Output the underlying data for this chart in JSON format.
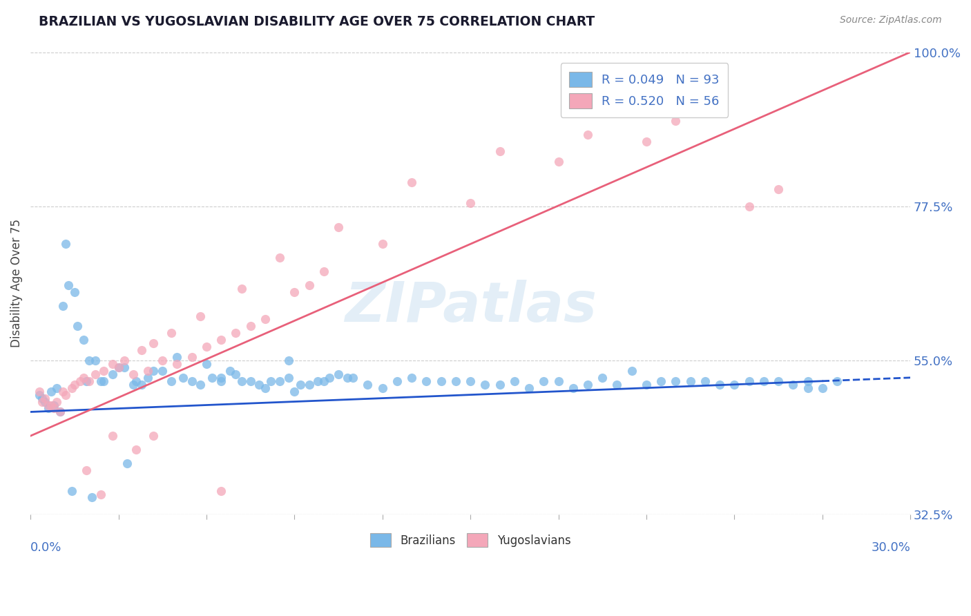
{
  "title": "BRAZILIAN VS YUGOSLAVIAN DISABILITY AGE OVER 75 CORRELATION CHART",
  "source": "Source: ZipAtlas.com",
  "ylabel_label": "Disability Age Over 75",
  "legend_R1": "R = 0.049",
  "legend_N1": "N = 93",
  "legend_R2": "R = 0.520",
  "legend_N2": "N = 56",
  "blue_color": "#7ab8e8",
  "pink_color": "#f4a7b9",
  "blue_line_color": "#2255cc",
  "pink_line_color": "#e8607a",
  "text_color_blue": "#4472c4",
  "xmin": 0.0,
  "xmax": 30.0,
  "ymin": 32.5,
  "ymax": 100.0,
  "ytick_vals": [
    32.5,
    55.0,
    77.5,
    100.0
  ],
  "blue_trend_y0": 47.5,
  "blue_trend_y1": 52.5,
  "pink_trend_y0": 44.0,
  "pink_trend_y1": 100.0,
  "blue_scatter_x": [
    0.3,
    0.4,
    0.5,
    0.6,
    0.7,
    0.8,
    0.9,
    1.0,
    1.1,
    1.2,
    1.3,
    1.5,
    1.6,
    1.8,
    2.0,
    2.2,
    2.5,
    2.8,
    3.0,
    3.2,
    3.5,
    3.8,
    4.0,
    4.2,
    4.5,
    4.8,
    5.0,
    5.2,
    5.5,
    5.8,
    6.0,
    6.2,
    6.5,
    6.8,
    7.0,
    7.2,
    7.5,
    7.8,
    8.0,
    8.2,
    8.5,
    8.8,
    9.0,
    9.2,
    9.5,
    9.8,
    10.0,
    10.2,
    10.5,
    10.8,
    11.0,
    11.5,
    12.0,
    12.5,
    13.0,
    13.5,
    14.0,
    14.5,
    15.0,
    15.5,
    16.0,
    16.5,
    17.0,
    17.5,
    18.0,
    18.5,
    19.0,
    19.5,
    20.0,
    20.5,
    21.0,
    21.5,
    22.0,
    22.5,
    23.0,
    23.5,
    24.0,
    24.5,
    25.0,
    25.5,
    26.0,
    26.5,
    27.0,
    27.5,
    2.4,
    3.6,
    1.9,
    6.5,
    8.8,
    26.5,
    1.4,
    2.1,
    3.3
  ],
  "blue_scatter_y": [
    50.0,
    49.5,
    49.0,
    48.0,
    50.5,
    48.5,
    51.0,
    47.5,
    63.0,
    72.0,
    66.0,
    65.0,
    60.0,
    58.0,
    55.0,
    55.0,
    52.0,
    53.0,
    54.0,
    54.0,
    51.5,
    51.5,
    52.5,
    53.5,
    53.5,
    52.0,
    55.5,
    52.5,
    52.0,
    51.5,
    54.5,
    52.5,
    52.5,
    53.5,
    53.0,
    52.0,
    52.0,
    51.5,
    51.0,
    52.0,
    52.0,
    52.5,
    50.5,
    51.5,
    51.5,
    52.0,
    52.0,
    52.5,
    53.0,
    52.5,
    52.5,
    51.5,
    51.0,
    52.0,
    52.5,
    52.0,
    52.0,
    52.0,
    52.0,
    51.5,
    51.5,
    52.0,
    51.0,
    52.0,
    52.0,
    51.0,
    51.5,
    52.5,
    51.5,
    53.5,
    51.5,
    52.0,
    52.0,
    52.0,
    52.0,
    51.5,
    51.5,
    52.0,
    52.0,
    52.0,
    51.5,
    51.0,
    51.0,
    52.0,
    52.0,
    52.0,
    52.0,
    52.0,
    55.0,
    52.0,
    36.0,
    35.0,
    40.0
  ],
  "pink_scatter_x": [
    0.3,
    0.5,
    0.6,
    0.8,
    0.9,
    1.0,
    1.2,
    1.4,
    1.5,
    1.7,
    1.8,
    1.9,
    2.0,
    2.2,
    2.4,
    2.5,
    2.8,
    3.0,
    3.2,
    3.5,
    3.6,
    3.8,
    4.0,
    4.2,
    4.5,
    4.8,
    5.0,
    5.5,
    5.8,
    6.0,
    6.5,
    7.0,
    7.2,
    7.5,
    8.0,
    8.5,
    9.0,
    9.5,
    10.0,
    10.5,
    12.0,
    13.0,
    15.0,
    16.0,
    18.0,
    19.0,
    21.0,
    22.0,
    24.5,
    25.5,
    0.4,
    0.7,
    1.1,
    2.8,
    4.2,
    6.5
  ],
  "pink_scatter_y": [
    50.5,
    49.5,
    48.5,
    48.0,
    49.0,
    47.5,
    50.0,
    51.0,
    51.5,
    52.0,
    52.5,
    39.0,
    52.0,
    53.0,
    35.5,
    53.5,
    54.5,
    54.0,
    55.0,
    53.0,
    42.0,
    56.5,
    53.5,
    57.5,
    55.0,
    59.0,
    54.5,
    55.5,
    61.5,
    57.0,
    58.0,
    59.0,
    65.5,
    60.0,
    61.0,
    70.0,
    65.0,
    66.0,
    68.0,
    74.5,
    72.0,
    81.0,
    78.0,
    85.5,
    84.0,
    88.0,
    87.0,
    90.0,
    77.5,
    80.0,
    49.0,
    48.5,
    50.5,
    44.0,
    44.0,
    36.0
  ]
}
